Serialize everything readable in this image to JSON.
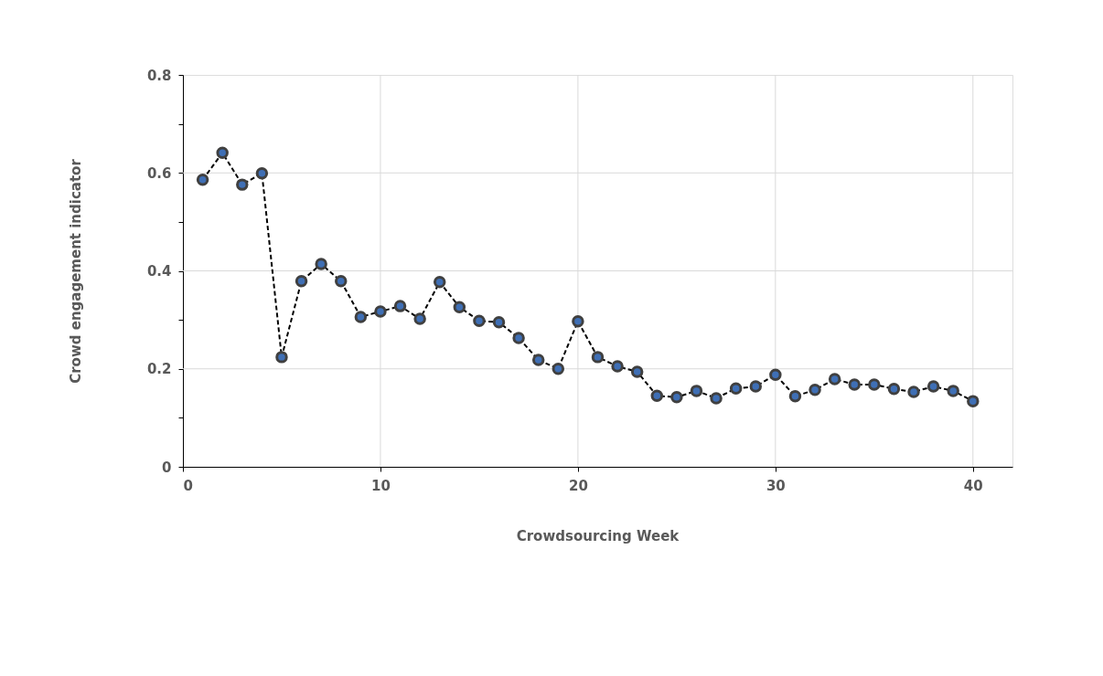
{
  "chart_data": {
    "type": "line",
    "xlabel": "Crowdsourcing Week",
    "ylabel": "Crowd engagement indicator",
    "x": [
      1,
      2,
      3,
      4,
      5,
      6,
      7,
      8,
      9,
      10,
      11,
      12,
      13,
      14,
      15,
      16,
      17,
      18,
      19,
      20,
      21,
      22,
      23,
      24,
      25,
      26,
      27,
      28,
      29,
      30,
      31,
      32,
      33,
      34,
      35,
      36,
      37,
      38,
      39,
      40
    ],
    "series": [
      {
        "color": "#3f6fb5",
        "values": [
          0.586,
          0.641,
          0.576,
          0.599,
          0.224,
          0.379,
          0.414,
          0.379,
          0.306,
          0.317,
          0.328,
          0.302,
          0.377,
          0.326,
          0.298,
          0.295,
          0.263,
          0.218,
          0.2,
          0.297,
          0.224,
          0.205,
          0.194,
          0.145,
          0.142,
          0.155,
          0.14,
          0.16,
          0.164,
          0.188,
          0.144,
          0.157,
          0.179,
          0.168,
          0.168,
          0.159,
          0.153,
          0.164,
          0.155,
          0.134
        ]
      }
    ],
    "xlim": [
      0,
      42
    ],
    "xticks": [
      0,
      10,
      20,
      30,
      40
    ],
    "ylim": [
      0,
      0.8
    ],
    "yticks": [
      0,
      {
        "value": 0.1,
        "label": null
      },
      0.2,
      {
        "value": 0.3,
        "label": null
      },
      0.4,
      {
        "value": 0.5,
        "label": null
      },
      0.6,
      {
        "value": 0.7,
        "label": null
      },
      0.8
    ],
    "grid": true,
    "marker": "circle",
    "line_style": "dashed"
  }
}
